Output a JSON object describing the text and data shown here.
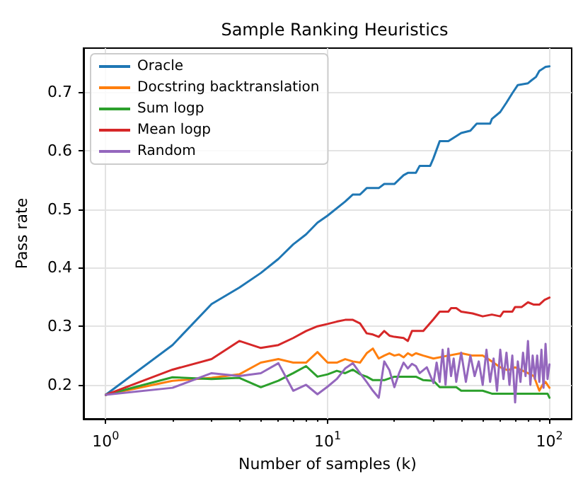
{
  "chart_data": {
    "type": "line",
    "title": "Sample Ranking Heuristics",
    "xlabel": "Number of samples (k)",
    "ylabel": "Pass rate",
    "log": "x",
    "grid": true,
    "legend": "top left",
    "marker": "none",
    "line_style": "solid",
    "xlim": [
      0.794,
      125.9
    ],
    "xticks": [
      {
        "value": 1,
        "label": "10$^{0}$"
      },
      {
        "value": 2,
        "label": null
      },
      {
        "value": 3,
        "label": null
      },
      {
        "value": 4,
        "label": null
      },
      {
        "value": 5,
        "label": null
      },
      {
        "value": 6,
        "label": null
      },
      {
        "value": 7,
        "label": null
      },
      {
        "value": 8,
        "label": null
      },
      {
        "value": 9,
        "label": null
      },
      {
        "value": 10,
        "label": "10$^{1}$"
      },
      {
        "value": 20,
        "label": null
      },
      {
        "value": 30,
        "label": null
      },
      {
        "value": 40,
        "label": null
      },
      {
        "value": 50,
        "label": null
      },
      {
        "value": 60,
        "label": null
      },
      {
        "value": 70,
        "label": null
      },
      {
        "value": 80,
        "label": null
      },
      {
        "value": 90,
        "label": null
      },
      {
        "value": 100,
        "label": "10$^{2}$"
      }
    ],
    "ylim": [
      0.142,
      0.775
    ],
    "yticks": [
      0.2,
      0.3,
      0.4,
      0.5,
      0.6,
      0.7
    ],
    "series": [
      {
        "name": "Oracle",
        "color": "#1f77b4",
        "x": [
          1,
          2,
          3,
          4,
          5,
          6,
          7,
          8,
          9,
          10,
          12,
          13,
          14,
          15,
          17,
          18,
          20,
          22,
          23,
          25,
          26,
          29,
          30,
          32,
          35,
          37,
          40,
          44,
          47,
          54,
          55,
          60,
          64,
          68,
          72,
          80,
          83,
          87,
          90,
          96,
          100
        ],
        "values": [
          0.183,
          0.268,
          0.338,
          0.366,
          0.391,
          0.415,
          0.44,
          0.457,
          0.477,
          0.489,
          0.513,
          0.525,
          0.525,
          0.536,
          0.536,
          0.543,
          0.543,
          0.558,
          0.562,
          0.562,
          0.574,
          0.574,
          0.587,
          0.616,
          0.616,
          0.622,
          0.63,
          0.634,
          0.646,
          0.646,
          0.654,
          0.666,
          0.682,
          0.698,
          0.712,
          0.715,
          0.72,
          0.726,
          0.736,
          0.743,
          0.744
        ]
      },
      {
        "name": "Docstring backtranslation",
        "color": "#ff7f0e",
        "x": [
          1,
          2,
          3,
          4,
          5,
          6,
          7,
          8,
          9,
          10,
          11,
          12,
          13,
          14,
          15,
          16,
          17,
          18,
          19,
          20,
          21,
          22,
          23,
          24,
          25,
          27,
          30,
          35,
          40,
          45,
          50,
          55,
          60,
          65,
          70,
          75,
          80,
          85,
          90,
          93,
          96,
          100
        ],
        "values": [
          0.183,
          0.207,
          0.212,
          0.218,
          0.238,
          0.244,
          0.238,
          0.238,
          0.256,
          0.238,
          0.238,
          0.244,
          0.24,
          0.238,
          0.254,
          0.262,
          0.245,
          0.25,
          0.254,
          0.25,
          0.252,
          0.247,
          0.254,
          0.25,
          0.254,
          0.25,
          0.245,
          0.25,
          0.254,
          0.25,
          0.25,
          0.24,
          0.23,
          0.225,
          0.23,
          0.225,
          0.22,
          0.215,
          0.19,
          0.2,
          0.205,
          0.195
        ]
      },
      {
        "name": "Sum logp",
        "color": "#2ca02c",
        "x": [
          1,
          2,
          3,
          4,
          5,
          6,
          7,
          8,
          9,
          10,
          11,
          12,
          13,
          14,
          15,
          16,
          18,
          20,
          25,
          27,
          30,
          32,
          38,
          40,
          50,
          55,
          80,
          98,
          100
        ],
        "values": [
          0.183,
          0.213,
          0.21,
          0.212,
          0.196,
          0.207,
          0.22,
          0.232,
          0.214,
          0.218,
          0.224,
          0.22,
          0.226,
          0.218,
          0.214,
          0.208,
          0.208,
          0.214,
          0.214,
          0.208,
          0.207,
          0.196,
          0.196,
          0.19,
          0.19,
          0.185,
          0.185,
          0.185,
          0.178
        ]
      },
      {
        "name": "Mean logp",
        "color": "#d62728",
        "x": [
          1,
          2,
          3,
          4,
          5,
          6,
          7,
          8,
          9,
          10,
          11,
          12,
          13,
          14,
          15,
          16,
          17,
          18,
          19,
          20,
          22,
          23,
          24,
          27,
          30,
          32,
          35,
          36,
          38,
          40,
          45,
          50,
          55,
          60,
          62,
          68,
          70,
          75,
          80,
          85,
          90,
          95,
          100
        ],
        "values": [
          0.183,
          0.226,
          0.244,
          0.275,
          0.263,
          0.268,
          0.28,
          0.292,
          0.3,
          0.304,
          0.308,
          0.311,
          0.311,
          0.305,
          0.288,
          0.286,
          0.282,
          0.292,
          0.284,
          0.282,
          0.28,
          0.275,
          0.292,
          0.292,
          0.312,
          0.325,
          0.325,
          0.331,
          0.331,
          0.325,
          0.322,
          0.317,
          0.32,
          0.317,
          0.325,
          0.325,
          0.333,
          0.333,
          0.341,
          0.337,
          0.337,
          0.345,
          0.349
        ]
      },
      {
        "name": "Random",
        "color": "#9467bd",
        "x": [
          1,
          2,
          3,
          4,
          5,
          6,
          7,
          8,
          9,
          10,
          11,
          12,
          13,
          14,
          15,
          16,
          17,
          18,
          19,
          20,
          21,
          22,
          23,
          24,
          25,
          26,
          28,
          30,
          31,
          32,
          33,
          34,
          35,
          36,
          37,
          38,
          40,
          42,
          44,
          46,
          48,
          50,
          52,
          54,
          56,
          58,
          60,
          62,
          64,
          66,
          68,
          70,
          72,
          74,
          76,
          78,
          80,
          82,
          84,
          86,
          88,
          90,
          92,
          94,
          96,
          98,
          100
        ],
        "values": [
          0.183,
          0.195,
          0.22,
          0.215,
          0.22,
          0.237,
          0.19,
          0.2,
          0.184,
          0.197,
          0.21,
          0.228,
          0.237,
          0.22,
          0.205,
          0.19,
          0.178,
          0.24,
          0.225,
          0.196,
          0.22,
          0.238,
          0.228,
          0.236,
          0.232,
          0.22,
          0.23,
          0.203,
          0.238,
          0.205,
          0.26,
          0.2,
          0.262,
          0.215,
          0.245,
          0.205,
          0.255,
          0.205,
          0.25,
          0.215,
          0.24,
          0.2,
          0.26,
          0.205,
          0.245,
          0.19,
          0.26,
          0.21,
          0.255,
          0.2,
          0.25,
          0.17,
          0.24,
          0.205,
          0.255,
          0.215,
          0.275,
          0.2,
          0.25,
          0.21,
          0.25,
          0.205,
          0.26,
          0.195,
          0.27,
          0.21,
          0.235
        ]
      }
    ]
  }
}
